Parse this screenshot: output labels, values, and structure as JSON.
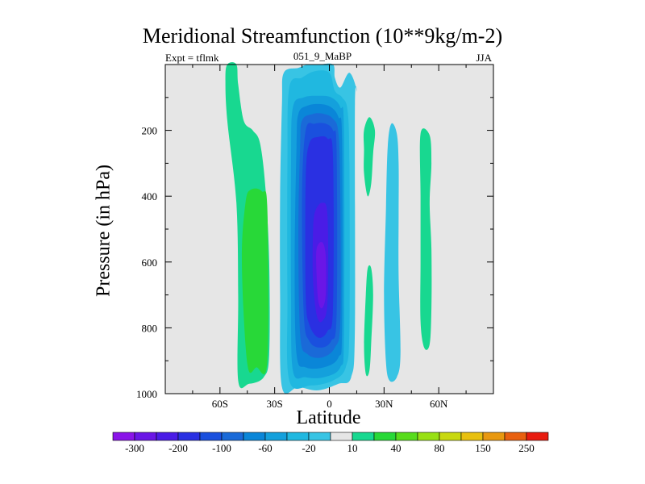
{
  "chart_data": {
    "type": "contour",
    "title": "Meridional Streamfunction (10**9kg/m-2)",
    "left_label": "Expt = tflmk",
    "center_label": "051_9_MaBP",
    "right_label": "JJA",
    "xlabel": "Latitude",
    "ylabel": "Pressure (in hPa)",
    "xlim": [
      -90,
      90
    ],
    "ylim": [
      1000,
      0
    ],
    "x_ticks": [
      {
        "value": -60,
        "label": "60S"
      },
      {
        "value": -30,
        "label": "30S"
      },
      {
        "value": 0,
        "label": "0"
      },
      {
        "value": 30,
        "label": "30N"
      },
      {
        "value": 60,
        "label": "60N"
      }
    ],
    "y_ticks": [
      {
        "value": 200,
        "label": "200"
      },
      {
        "value": 400,
        "label": "400"
      },
      {
        "value": 600,
        "label": "600"
      },
      {
        "value": 800,
        "label": "800"
      },
      {
        "value": 1000,
        "label": "1000"
      }
    ],
    "background_color": "#e6e6e6",
    "levels": [
      -300,
      -250,
      -200,
      -150,
      -100,
      -80,
      -60,
      -40,
      -20,
      -10,
      10,
      20,
      40,
      60,
      80,
      100,
      150,
      200,
      250,
      300
    ],
    "colorbar_labels": [
      "-300",
      "-200",
      "-100",
      "-60",
      "-20",
      "10",
      "40",
      "80",
      "150",
      "250"
    ],
    "colorbar_colors": [
      "#8a14e8",
      "#6a16e6",
      "#4a1ce6",
      "#2a30e2",
      "#1a50de",
      "#1a6ad8",
      "#0a86d8",
      "#14a0dc",
      "#20b8e0",
      "#38c4e4",
      "#e6e6e6",
      "#18d890",
      "#28d838",
      "#58dc1c",
      "#98e014",
      "#c8d810",
      "#e8c010",
      "#e89810",
      "#e86010",
      "#e81c10"
    ],
    "regions": [
      {
        "name": "sh-positive-cell",
        "color": "#18d890",
        "points": [
          [
            -56,
            0
          ],
          [
            -51,
            0
          ],
          [
            -50,
            60
          ],
          [
            -47,
            170
          ],
          [
            -42,
            200
          ],
          [
            -38,
            240
          ],
          [
            -35,
            380
          ],
          [
            -33,
            600
          ],
          [
            -33,
            880
          ],
          [
            -36,
            950
          ],
          [
            -44,
            970
          ],
          [
            -50,
            960
          ],
          [
            -50,
            700
          ],
          [
            -51,
            420
          ],
          [
            -56,
            170
          ],
          [
            -57,
            50
          ]
        ]
      },
      {
        "name": "sh-positive-core",
        "color": "#28d838",
        "points": [
          [
            -43,
            380
          ],
          [
            -37,
            385
          ],
          [
            -34,
            440
          ],
          [
            -34,
            900
          ],
          [
            -40,
            920
          ],
          [
            -45,
            910
          ],
          [
            -48,
            600
          ],
          [
            -46,
            420
          ]
        ]
      },
      {
        "name": "hadley-cell",
        "color": "#38c4e4",
        "points": [
          [
            -25,
            25
          ],
          [
            -17,
            10
          ],
          [
            -12,
            0
          ],
          [
            -6,
            0
          ],
          [
            2,
            0
          ],
          [
            3,
            40
          ],
          [
            6,
            70
          ],
          [
            11,
            25
          ],
          [
            15,
            80
          ],
          [
            14,
            130
          ],
          [
            14,
            800
          ],
          [
            12,
            950
          ],
          [
            5,
            970
          ],
          [
            -6,
            990
          ],
          [
            -17,
            980
          ],
          [
            -26,
            980
          ],
          [
            -27,
            700
          ],
          [
            -27,
            400
          ],
          [
            -26,
            120
          ]
        ]
      },
      {
        "name": "hadley-cell",
        "color": "#20b8e0",
        "points": [
          [
            -22,
            70
          ],
          [
            -15,
            40
          ],
          [
            -8,
            20
          ],
          [
            0,
            25
          ],
          [
            3,
            80
          ],
          [
            7,
            100
          ],
          [
            10,
            140
          ],
          [
            11,
            300
          ],
          [
            11,
            800
          ],
          [
            9,
            920
          ],
          [
            2,
            960
          ],
          [
            -10,
            975
          ],
          [
            -22,
            960
          ],
          [
            -23,
            700
          ],
          [
            -23,
            300
          ]
        ]
      },
      {
        "name": "hadley-cell",
        "color": "#14a0dc",
        "points": [
          [
            -20,
            130
          ],
          [
            -14,
            100
          ],
          [
            -6,
            95
          ],
          [
            1,
            100
          ],
          [
            6,
            130
          ],
          [
            8,
            200
          ],
          [
            8,
            820
          ],
          [
            6,
            920
          ],
          [
            -3,
            950
          ],
          [
            -13,
            950
          ],
          [
            -20,
            930
          ],
          [
            -21,
            700
          ],
          [
            -21,
            300
          ]
        ]
      },
      {
        "name": "hadley-cell",
        "color": "#0a86d8",
        "points": [
          [
            -17,
            150
          ],
          [
            -12,
            125
          ],
          [
            -5,
            120
          ],
          [
            1,
            130
          ],
          [
            5,
            160
          ],
          [
            7,
            230
          ],
          [
            7,
            800
          ],
          [
            5,
            890
          ],
          [
            -3,
            920
          ],
          [
            -13,
            920
          ],
          [
            -18,
            880
          ],
          [
            -19,
            600
          ],
          [
            -18,
            250
          ]
        ]
      },
      {
        "name": "hadley-cell",
        "color": "#1a6ad8",
        "points": [
          [
            -15,
            170
          ],
          [
            -9,
            150
          ],
          [
            -3,
            150
          ],
          [
            2,
            165
          ],
          [
            5,
            210
          ],
          [
            6,
            400
          ],
          [
            6,
            780
          ],
          [
            3,
            860
          ],
          [
            -4,
            890
          ],
          [
            -12,
            880
          ],
          [
            -16,
            820
          ],
          [
            -17,
            500
          ],
          [
            -16,
            250
          ]
        ]
      },
      {
        "name": "hadley-cell",
        "color": "#1a50de",
        "points": [
          [
            -13,
            200
          ],
          [
            -8,
            180
          ],
          [
            -2,
            180
          ],
          [
            2,
            200
          ],
          [
            4,
            260
          ],
          [
            4,
            760
          ],
          [
            1,
            840
          ],
          [
            -5,
            860
          ],
          [
            -11,
            840
          ],
          [
            -14,
            760
          ],
          [
            -15,
            400
          ]
        ]
      },
      {
        "name": "hadley-cell",
        "color": "#2a30e2",
        "points": [
          [
            -11,
            240
          ],
          [
            -6,
            220
          ],
          [
            -1,
            225
          ],
          [
            2,
            280
          ],
          [
            2,
            740
          ],
          [
            -1,
            810
          ],
          [
            -6,
            830
          ],
          [
            -11,
            790
          ],
          [
            -13,
            700
          ],
          [
            -13,
            350
          ]
        ]
      },
      {
        "name": "hadley-core",
        "color": "#4a1ce6",
        "points": [
          [
            -8,
            450
          ],
          [
            -4,
            420
          ],
          [
            -1,
            460
          ],
          [
            -1,
            720
          ],
          [
            -4,
            780
          ],
          [
            -7,
            760
          ],
          [
            -9,
            650
          ],
          [
            -9,
            520
          ]
        ]
      },
      {
        "name": "hadley-core",
        "color": "#6a16e6",
        "points": [
          [
            -7,
            560
          ],
          [
            -4,
            540
          ],
          [
            -2,
            580
          ],
          [
            -2,
            700
          ],
          [
            -4,
            740
          ],
          [
            -6,
            720
          ],
          [
            -7,
            640
          ]
        ]
      },
      {
        "name": "nh-positive-cell-20n",
        "color": "#18d890",
        "points": [
          [
            19,
            200
          ],
          [
            22,
            160
          ],
          [
            25,
            200
          ],
          [
            24,
            270
          ],
          [
            23,
            360
          ],
          [
            21,
            400
          ],
          [
            19,
            330
          ],
          [
            19,
            260
          ]
        ]
      },
      {
        "name": "nh-positive-cell-20n",
        "color": "#18d890",
        "points": [
          [
            21,
            620
          ],
          [
            23,
            620
          ],
          [
            24,
            700
          ],
          [
            23,
            840
          ],
          [
            22,
            930
          ],
          [
            20,
            940
          ],
          [
            19,
            850
          ],
          [
            20,
            700
          ]
        ]
      },
      {
        "name": "nh-negative-cell-35n",
        "color": "#38c4e4",
        "points": [
          [
            34,
            180
          ],
          [
            37,
            210
          ],
          [
            38,
            300
          ],
          [
            38,
            460
          ],
          [
            38,
            640
          ],
          [
            39,
            880
          ],
          [
            37,
            950
          ],
          [
            33,
            960
          ],
          [
            31,
            900
          ],
          [
            30,
            700
          ],
          [
            31,
            450
          ],
          [
            32,
            250
          ]
        ]
      },
      {
        "name": "nh-positive-cell-50n",
        "color": "#18d890",
        "points": [
          [
            50,
            210
          ],
          [
            55,
            215
          ],
          [
            56,
            300
          ],
          [
            55,
            420
          ],
          [
            56,
            560
          ],
          [
            56,
            740
          ],
          [
            55,
            850
          ],
          [
            52,
            860
          ],
          [
            50,
            780
          ],
          [
            50,
            600
          ],
          [
            50,
            400
          ]
        ]
      }
    ]
  }
}
